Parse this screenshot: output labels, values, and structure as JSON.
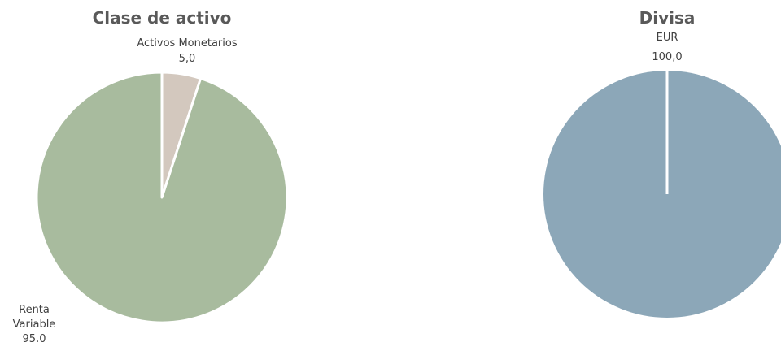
{
  "chart_data": [
    {
      "type": "pie",
      "title": "Clase de activo",
      "slices": [
        {
          "label": "Activos Monetarios",
          "value": 5.0,
          "value_label": "5,0",
          "color": "#d3c8be"
        },
        {
          "label": "Renta Variable",
          "value": 95.0,
          "value_label": "95,0",
          "color": "#a8bb9e"
        }
      ]
    },
    {
      "type": "pie",
      "title": "Divisa",
      "slices": [
        {
          "label": "EUR",
          "value": 100.0,
          "value_label": "100,0",
          "color": "#8ca7b8"
        }
      ]
    }
  ]
}
